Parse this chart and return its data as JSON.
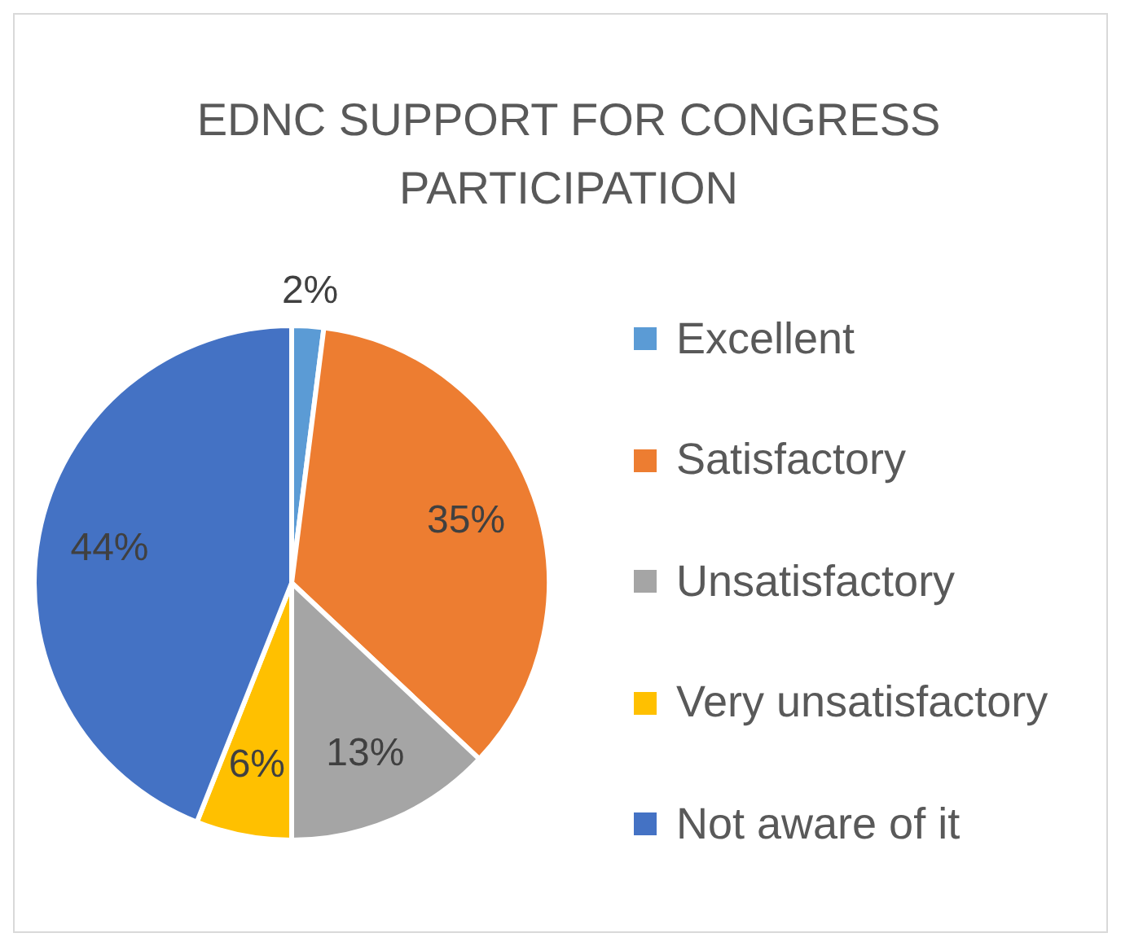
{
  "chart_data": {
    "type": "pie",
    "title": "EDNC SUPPORT FOR CONGRESS PARTICIPATION",
    "categories": [
      "Excellent",
      "Satisfactory",
      "Unsatisfactory",
      "Very unsatisfactory",
      "Not aware of it"
    ],
    "values": [
      2,
      35,
      13,
      6,
      44
    ],
    "colors": [
      "#5b9bd5",
      "#ed7d31",
      "#a5a5a5",
      "#ffc000",
      "#4472c4"
    ],
    "value_labels": [
      "2%",
      "35%",
      "13%",
      "6%",
      "44%"
    ],
    "legend": "right"
  }
}
